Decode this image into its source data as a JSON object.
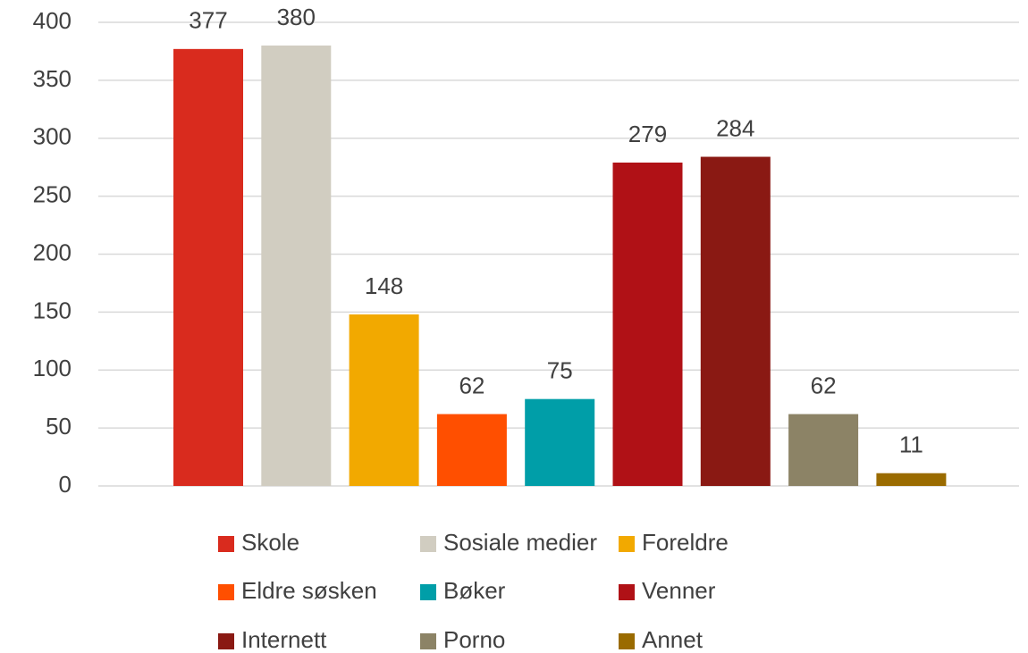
{
  "chart_data": {
    "type": "bar",
    "categories": [
      "Skole",
      "Sosiale medier",
      "Foreldre",
      "Eldre søsken",
      "Bøker",
      "Venner",
      "Internett",
      "Porno",
      "Annet"
    ],
    "values": [
      377,
      380,
      148,
      62,
      75,
      279,
      284,
      62,
      11
    ],
    "colors": [
      "#d92b1e",
      "#d1cdc1",
      "#f2a900",
      "#ff4f00",
      "#009ea8",
      "#b01116",
      "#8a1913",
      "#8c8366",
      "#9a6b00"
    ],
    "ylim": [
      0,
      400
    ],
    "yticks": [
      0,
      50,
      100,
      150,
      200,
      250,
      300,
      350,
      400
    ],
    "grid": true,
    "legend": "bottom"
  }
}
